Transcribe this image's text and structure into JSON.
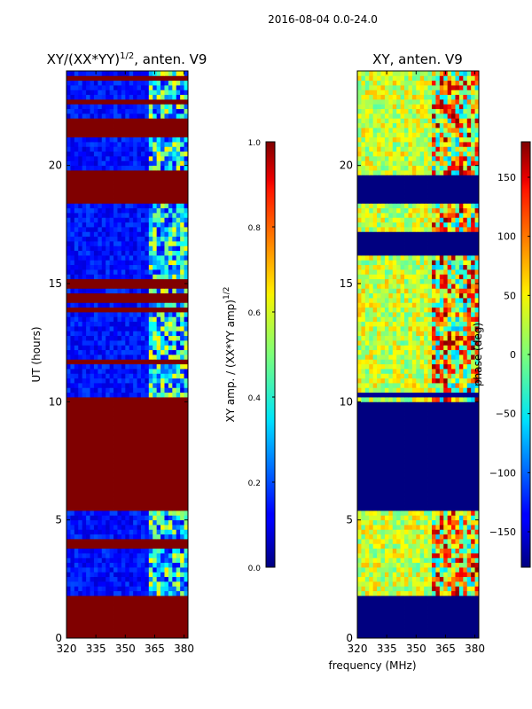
{
  "suptitle": "2016-08-04 0.0-24.0",
  "shared_xlabel": "frequency (MHz)",
  "chart_data": [
    {
      "type": "heatmap",
      "title_main": "XY/(XX*YY)",
      "title_sup": "1/2",
      "title_tail": ", anten. V9",
      "ylabel": "UT (hours)",
      "xlim": [
        320,
        382
      ],
      "ylim": [
        0,
        24
      ],
      "xticks": [
        "320",
        "335",
        "350",
        "365",
        "380"
      ],
      "xtick_values": [
        320,
        335,
        350,
        365,
        380
      ],
      "yticks": [
        "0",
        "5",
        "10",
        "15",
        "20"
      ],
      "ytick_values": [
        0,
        5,
        10,
        15,
        20
      ],
      "colorbar": {
        "label_main": "XY amp. / (XX*YY amp)",
        "label_sup": "1/2",
        "ticks": [
          "0.0",
          "0.2",
          "0.4",
          "0.6",
          "0.8",
          "1.0"
        ],
        "tick_values": [
          0,
          0.2,
          0.4,
          0.6,
          0.8,
          1.0
        ],
        "range": [
          0,
          1
        ],
        "colormap": "jet"
      },
      "flagged_time_ranges_hours": [
        [
          0,
          1.9
        ],
        [
          5.5,
          9.95
        ],
        [
          16.2,
          16.3
        ],
        [
          18.5,
          19.7
        ],
        [
          21.6,
          22.0
        ]
      ]
    },
    {
      "type": "heatmap",
      "title_main": "XY, anten. V9",
      "ylabel": "phase (deg)",
      "xlim": [
        320,
        382
      ],
      "ylim": [
        0,
        24
      ],
      "xticks": [
        "320",
        "335",
        "350",
        "365",
        "380"
      ],
      "xtick_values": [
        320,
        335,
        350,
        365,
        380
      ],
      "yticks": [
        "0",
        "5",
        "10",
        "15",
        "20"
      ],
      "ytick_values": [
        0,
        5,
        10,
        15,
        20
      ],
      "colorbar": {
        "ticks": [
          "−150",
          "−100",
          "−50",
          "0",
          "50",
          "100",
          "150"
        ],
        "tick_values": [
          -150,
          -100,
          -50,
          0,
          50,
          100,
          150
        ],
        "range": [
          -180,
          180
        ],
        "colormap": "jet"
      },
      "flagged_time_ranges_hours": [
        [
          0,
          1.9
        ],
        [
          5.5,
          9.95
        ],
        [
          16.2,
          17.3
        ],
        [
          18.5,
          19.7
        ]
      ]
    }
  ]
}
